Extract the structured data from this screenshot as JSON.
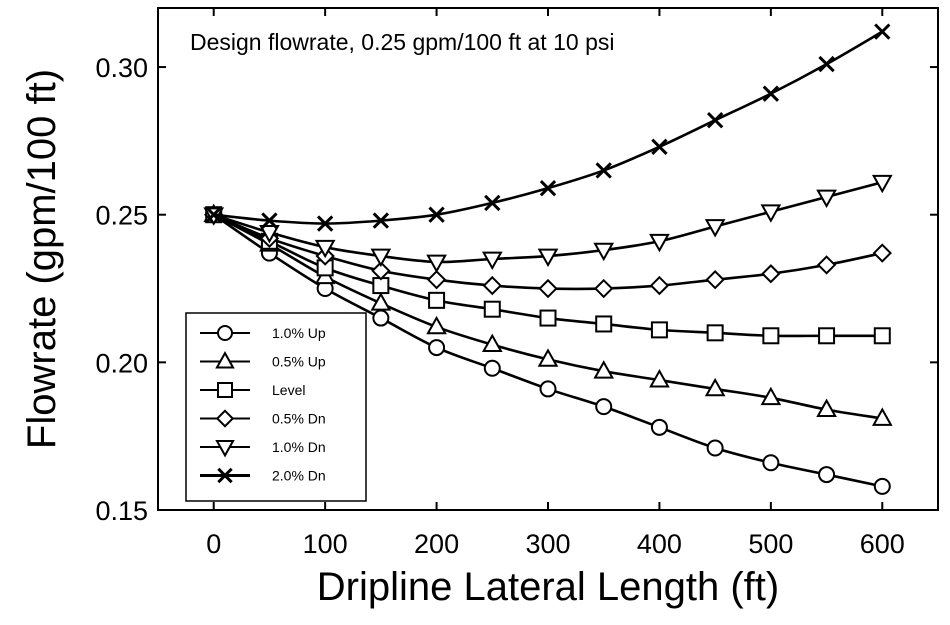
{
  "chart_data": {
    "type": "line",
    "title": "",
    "annotation": "Design flowrate, 0.25 gpm/100 ft at 10 psi",
    "xlabel": "Dripline Lateral Length (ft)",
    "ylabel": "Flowrate (gpm/100 ft)",
    "xlim": [
      -50,
      650
    ],
    "ylim": [
      0.15,
      0.32
    ],
    "xticks": [
      0,
      100,
      200,
      300,
      400,
      500,
      600
    ],
    "xtick_labels": [
      "0",
      "100",
      "200",
      "300",
      "400",
      "500",
      "600"
    ],
    "yticks": [
      0.15,
      0.2,
      0.25,
      0.3
    ],
    "ytick_labels": [
      "0.15",
      "0.20",
      "0.25",
      "0.30"
    ],
    "grid": false,
    "legend_position": "bottom-left",
    "x": [
      0,
      50,
      100,
      150,
      200,
      250,
      300,
      350,
      400,
      450,
      500,
      550,
      600
    ],
    "series": [
      {
        "name": "1.0% Up",
        "marker": "circle",
        "values": [
          0.25,
          0.237,
          0.225,
          0.215,
          0.205,
          0.198,
          0.191,
          0.185,
          0.178,
          0.171,
          0.166,
          0.162,
          0.158
        ]
      },
      {
        "name": "0.5% Up",
        "marker": "triangle-up",
        "values": [
          0.25,
          0.24,
          0.229,
          0.22,
          0.212,
          0.206,
          0.201,
          0.197,
          0.194,
          0.191,
          0.188,
          0.184,
          0.181
        ]
      },
      {
        "name": "Level",
        "marker": "square",
        "values": [
          0.25,
          0.241,
          0.232,
          0.226,
          0.221,
          0.218,
          0.215,
          0.213,
          0.211,
          0.21,
          0.209,
          0.209,
          0.209
        ]
      },
      {
        "name": "0.5% Dn",
        "marker": "diamond",
        "values": [
          0.25,
          0.242,
          0.236,
          0.231,
          0.228,
          0.226,
          0.225,
          0.225,
          0.226,
          0.228,
          0.23,
          0.233,
          0.237
        ]
      },
      {
        "name": "1.0% Dn",
        "marker": "triangle-down",
        "values": [
          0.25,
          0.244,
          0.239,
          0.236,
          0.234,
          0.235,
          0.236,
          0.238,
          0.241,
          0.246,
          0.251,
          0.256,
          0.261
        ]
      },
      {
        "name": "2.0% Dn",
        "marker": "x",
        "values": [
          0.25,
          0.248,
          0.247,
          0.248,
          0.25,
          0.254,
          0.259,
          0.265,
          0.273,
          0.282,
          0.291,
          0.301,
          0.312
        ]
      }
    ]
  }
}
